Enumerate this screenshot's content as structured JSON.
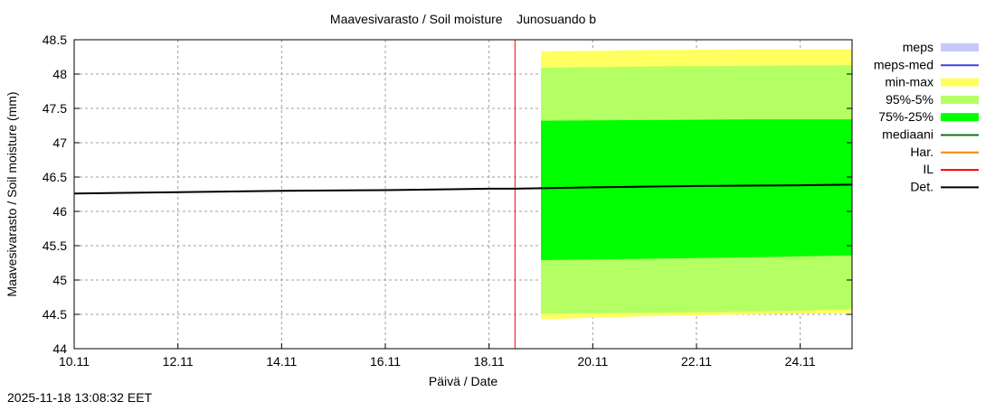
{
  "chart_data": {
    "type": "area",
    "title": "Maavesivarasto / Soil moisture    Junosuando b",
    "xlabel": "Päivä / Date",
    "ylabel": "Maavesivarasto / Soil moisture (mm)",
    "xlim": [
      10,
      25
    ],
    "ylim": [
      44,
      48.5
    ],
    "grid": true,
    "legend_placement": "right",
    "xticks": [
      {
        "v": 10,
        "label": "10.11"
      },
      {
        "v": 12,
        "label": "12.11"
      },
      {
        "v": 14,
        "label": "14.11"
      },
      {
        "v": 16,
        "label": "16.11"
      },
      {
        "v": 18,
        "label": "18.11"
      },
      {
        "v": 20,
        "label": "20.11"
      },
      {
        "v": 22,
        "label": "22.11"
      },
      {
        "v": 24,
        "label": "24.11"
      }
    ],
    "yticks": [
      {
        "v": 44,
        "label": "44"
      },
      {
        "v": 44.5,
        "label": "44.5"
      },
      {
        "v": 45,
        "label": "45"
      },
      {
        "v": 45.5,
        "label": "45.5"
      },
      {
        "v": 46,
        "label": "46"
      },
      {
        "v": 46.5,
        "label": "46.5"
      },
      {
        "v": 47,
        "label": "47"
      },
      {
        "v": 47.5,
        "label": "47.5"
      },
      {
        "v": 48,
        "label": "48"
      },
      {
        "v": 48.5,
        "label": "48.5"
      }
    ],
    "legend": [
      {
        "label": "meps",
        "color": "#c8c8f8",
        "kind": "box"
      },
      {
        "label": "meps-med",
        "color": "#4040e0",
        "kind": "line"
      },
      {
        "label": "min-max",
        "color": "#ffff60",
        "kind": "box"
      },
      {
        "label": "95%-5%",
        "color": "#b4ff64",
        "kind": "box"
      },
      {
        "label": "75%-25%",
        "color": "#00ff00",
        "kind": "box"
      },
      {
        "label": "mediaani",
        "color": "#107010",
        "kind": "line"
      },
      {
        "label": "Har.",
        "color": "#ff8000",
        "kind": "line"
      },
      {
        "label": "IL",
        "color": "#ff0000",
        "kind": "line"
      },
      {
        "label": "Det.",
        "color": "#000000",
        "kind": "line"
      }
    ],
    "bands": [
      {
        "name": "min-max",
        "color": "#ffff60",
        "x": [
          19.0,
          21.0,
          23.0,
          25.0
        ],
        "low": [
          44.43,
          44.47,
          44.5,
          44.52
        ],
        "high": [
          48.33,
          48.35,
          48.36,
          48.36
        ]
      },
      {
        "name": "95%-5%",
        "color": "#b4ff64",
        "x": [
          19.0,
          21.0,
          23.0,
          25.0
        ],
        "low": [
          44.51,
          44.52,
          44.54,
          44.57
        ],
        "high": [
          48.09,
          48.11,
          48.12,
          48.13
        ]
      },
      {
        "name": "75%-25%",
        "color": "#00ff00",
        "x": [
          19.0,
          21.0,
          23.0,
          25.0
        ],
        "low": [
          45.29,
          45.31,
          45.33,
          45.36
        ],
        "high": [
          47.32,
          47.33,
          47.34,
          47.34
        ]
      }
    ],
    "det": {
      "x": [
        10,
        12,
        14,
        16,
        18,
        18.5,
        20,
        22,
        24,
        25
      ],
      "y": [
        46.26,
        46.28,
        46.3,
        46.31,
        46.33,
        46.33,
        46.35,
        46.37,
        46.38,
        46.39
      ]
    },
    "il_x": 18.5
  },
  "footer": {
    "timestamp": "2025-11-18 13:08:32 EET"
  }
}
